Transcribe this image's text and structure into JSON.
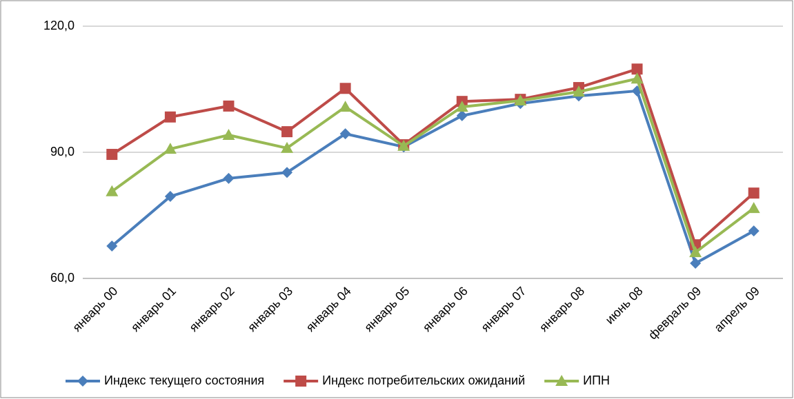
{
  "chart_data": {
    "type": "line",
    "categories": [
      "январь 00",
      "январь 01",
      "январь 02",
      "январь 03",
      "январь 04",
      "январь 05",
      "январь 06",
      "январь 07",
      "январь 08",
      "июнь 08",
      "февраль 09",
      "апрель 09"
    ],
    "series": [
      {
        "name": "Индекс текущего состояния",
        "color": "#4a7ebb",
        "marker": "diamond",
        "values": [
          67.7,
          79.5,
          83.8,
          85.2,
          94.4,
          91.3,
          98.7,
          101.6,
          103.4,
          104.6,
          63.6,
          71.3
        ]
      },
      {
        "name": "Индекс потребительских ожиданий",
        "color": "#be4b48",
        "marker": "square",
        "values": [
          89.5,
          98.4,
          101.0,
          94.9,
          105.2,
          91.8,
          102.1,
          102.6,
          105.4,
          109.8,
          68.0,
          80.3
        ]
      },
      {
        "name": "ИПН",
        "color": "#98b954",
        "marker": "triangle",
        "values": [
          80.7,
          90.8,
          94.1,
          91.0,
          100.8,
          91.5,
          100.8,
          102.3,
          104.4,
          107.5,
          66.2,
          76.7
        ]
      }
    ],
    "ylim": [
      60,
      120
    ],
    "yticks": [
      {
        "value": 60,
        "label": "60,0"
      },
      {
        "value": 90,
        "label": "90,0"
      },
      {
        "value": 120,
        "label": "120,0"
      }
    ],
    "grid": true,
    "legend": "bottom"
  }
}
